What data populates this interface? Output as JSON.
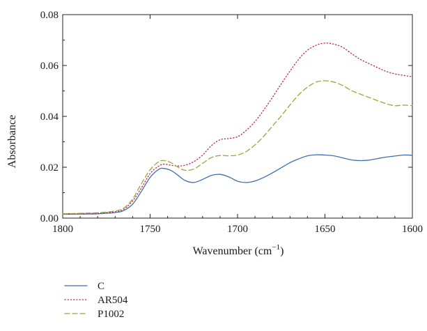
{
  "chart_data": {
    "type": "line",
    "title": "",
    "xlabel": "Wavenumber (cm",
    "xlabel_sup": "−1",
    "xlabel_close": ")",
    "ylabel": "Absorbance",
    "xlim": [
      1800,
      1600
    ],
    "x_reversed": true,
    "ylim": [
      0,
      0.08
    ],
    "x_ticks": [
      1800,
      1750,
      1700,
      1650,
      1600
    ],
    "x_tick_labels": [
      "1800",
      "1750",
      "1700",
      "1650",
      "1600"
    ],
    "y_ticks": [
      0,
      0.02,
      0.04,
      0.06,
      0.08
    ],
    "y_tick_labels": [
      "0.00",
      "0.02",
      "0.04",
      "0.06",
      "0.08"
    ],
    "grid": false,
    "legend_position": "below",
    "series": [
      {
        "name": "C",
        "color": "#3d6fb0",
        "dash": "solid",
        "x": [
          1800,
          1790,
          1780,
          1770,
          1765,
          1760,
          1755,
          1750,
          1745,
          1742,
          1738,
          1734,
          1730,
          1725,
          1720,
          1715,
          1710,
          1705,
          1700,
          1695,
          1690,
          1685,
          1680,
          1675,
          1670,
          1665,
          1660,
          1655,
          1650,
          1645,
          1640,
          1635,
          1630,
          1625,
          1620,
          1615,
          1610,
          1605,
          1600
        ],
        "y": [
          0.0015,
          0.0016,
          0.0017,
          0.0022,
          0.003,
          0.0055,
          0.0105,
          0.016,
          0.0192,
          0.0195,
          0.0187,
          0.0168,
          0.0148,
          0.014,
          0.0152,
          0.0168,
          0.0172,
          0.0162,
          0.0145,
          0.014,
          0.0146,
          0.016,
          0.0178,
          0.0198,
          0.0218,
          0.0233,
          0.0245,
          0.0249,
          0.0248,
          0.0245,
          0.0237,
          0.0229,
          0.0226,
          0.0228,
          0.0234,
          0.024,
          0.0244,
          0.0248,
          0.0247
        ]
      },
      {
        "name": "AR504",
        "color": "#c0244a",
        "dash": "dotted",
        "x": [
          1800,
          1790,
          1780,
          1770,
          1765,
          1760,
          1755,
          1750,
          1745,
          1742,
          1738,
          1734,
          1730,
          1725,
          1720,
          1715,
          1710,
          1705,
          1700,
          1695,
          1690,
          1685,
          1680,
          1675,
          1670,
          1665,
          1660,
          1655,
          1650,
          1645,
          1640,
          1635,
          1630,
          1625,
          1620,
          1615,
          1610,
          1605,
          1600
        ],
        "y": [
          0.0017,
          0.0018,
          0.0019,
          0.0025,
          0.0035,
          0.0068,
          0.0118,
          0.0175,
          0.0205,
          0.0212,
          0.0208,
          0.0205,
          0.0208,
          0.0222,
          0.0248,
          0.0285,
          0.0308,
          0.0313,
          0.032,
          0.0345,
          0.038,
          0.0425,
          0.0475,
          0.0528,
          0.0578,
          0.0625,
          0.066,
          0.068,
          0.0688,
          0.0684,
          0.0672,
          0.0648,
          0.0625,
          0.0608,
          0.0592,
          0.0577,
          0.0567,
          0.0561,
          0.0556
        ]
      },
      {
        "name": "P1002",
        "color": "#9aa83a",
        "dash": "dashed",
        "x": [
          1800,
          1790,
          1780,
          1770,
          1765,
          1760,
          1755,
          1750,
          1745,
          1742,
          1738,
          1734,
          1730,
          1725,
          1720,
          1715,
          1710,
          1705,
          1700,
          1695,
          1690,
          1685,
          1680,
          1675,
          1670,
          1665,
          1660,
          1655,
          1650,
          1645,
          1640,
          1635,
          1630,
          1625,
          1620,
          1615,
          1610,
          1605,
          1600
        ],
        "y": [
          0.0017,
          0.0019,
          0.0021,
          0.0028,
          0.004,
          0.0075,
          0.0135,
          0.019,
          0.0222,
          0.0226,
          0.0218,
          0.02,
          0.0188,
          0.0193,
          0.0215,
          0.0238,
          0.0246,
          0.0245,
          0.0248,
          0.0262,
          0.0288,
          0.0322,
          0.0362,
          0.0402,
          0.0445,
          0.0485,
          0.0515,
          0.0535,
          0.054,
          0.0535,
          0.0522,
          0.0502,
          0.0488,
          0.0475,
          0.0462,
          0.045,
          0.0442,
          0.0444,
          0.0442
        ]
      }
    ]
  }
}
